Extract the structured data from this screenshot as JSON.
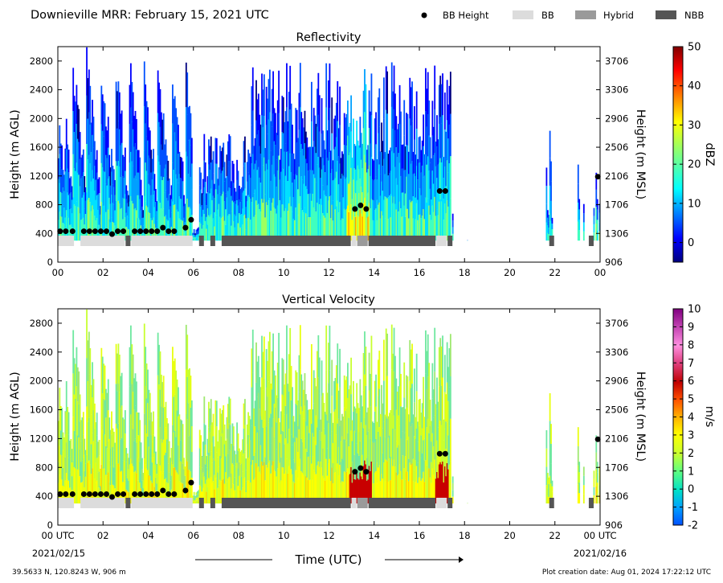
{
  "header": {
    "title": "Downieville MRR:  February 15, 2021 UTC",
    "legend": [
      {
        "label": "BB Height",
        "kind": "dot",
        "color": "#000000"
      },
      {
        "label": "BB",
        "kind": "box",
        "color": "#dcdcdc"
      },
      {
        "label": "Hybrid",
        "kind": "box",
        "color": "#9a9a9a"
      },
      {
        "label": "NBB",
        "kind": "box",
        "color": "#555555"
      }
    ]
  },
  "chart_data": [
    {
      "type": "heatmap",
      "title": "Reflectivity",
      "ylabel": "Height (m AGL)",
      "ylabel_right": "Height (m MSL)",
      "ylim": [
        0,
        3000
      ],
      "xlim": [
        0,
        24
      ],
      "x_ticks": [
        "00",
        "02",
        "04",
        "06",
        "08",
        "10",
        "12",
        "14",
        "16",
        "18",
        "20",
        "22",
        "00"
      ],
      "y_ticks": [
        0,
        400,
        800,
        1200,
        1600,
        2000,
        2400,
        2800
      ],
      "y_ticks_right": [
        "906",
        "1306",
        "1706",
        "2106",
        "2506",
        "2906",
        "3306",
        "3706"
      ],
      "colorbar": {
        "label": "dBZ",
        "min": -5,
        "max": 50,
        "ticks": [
          0,
          10,
          20,
          30,
          40,
          50
        ],
        "colormap": "jet"
      },
      "bb_height": [
        {
          "t": 0.1,
          "h": 430
        },
        {
          "t": 0.35,
          "h": 430
        },
        {
          "t": 0.65,
          "h": 430
        },
        {
          "t": 1.15,
          "h": 430
        },
        {
          "t": 1.4,
          "h": 430
        },
        {
          "t": 1.65,
          "h": 430
        },
        {
          "t": 1.9,
          "h": 430
        },
        {
          "t": 2.15,
          "h": 430
        },
        {
          "t": 2.4,
          "h": 390
        },
        {
          "t": 2.65,
          "h": 430
        },
        {
          "t": 2.9,
          "h": 430
        },
        {
          "t": 3.4,
          "h": 430
        },
        {
          "t": 3.65,
          "h": 430
        },
        {
          "t": 3.9,
          "h": 430
        },
        {
          "t": 4.15,
          "h": 430
        },
        {
          "t": 4.4,
          "h": 430
        },
        {
          "t": 4.65,
          "h": 480
        },
        {
          "t": 4.9,
          "h": 430
        },
        {
          "t": 5.15,
          "h": 430
        },
        {
          "t": 5.65,
          "h": 480
        },
        {
          "t": 5.9,
          "h": 590
        },
        {
          "t": 13.15,
          "h": 740
        },
        {
          "t": 13.4,
          "h": 790
        },
        {
          "t": 13.65,
          "h": 740
        },
        {
          "t": 16.9,
          "h": 990
        },
        {
          "t": 17.15,
          "h": 990
        },
        {
          "t": 23.9,
          "h": 1190
        }
      ],
      "bands": [
        {
          "start": 0.0,
          "end": 0.75,
          "type": "BB"
        },
        {
          "start": 1.0,
          "end": 3.0,
          "type": "BB"
        },
        {
          "start": 3.0,
          "end": 3.25,
          "type": "NBB"
        },
        {
          "start": 3.25,
          "end": 6.0,
          "type": "BB"
        },
        {
          "start": 6.25,
          "end": 6.5,
          "type": "NBB"
        },
        {
          "start": 6.75,
          "end": 7.0,
          "type": "NBB"
        },
        {
          "start": 7.25,
          "end": 13.0,
          "type": "NBB"
        },
        {
          "start": 13.0,
          "end": 13.25,
          "type": "BB"
        },
        {
          "start": 13.25,
          "end": 13.75,
          "type": "Hybrid"
        },
        {
          "start": 13.75,
          "end": 16.75,
          "type": "NBB"
        },
        {
          "start": 16.75,
          "end": 17.25,
          "type": "BB"
        },
        {
          "start": 17.25,
          "end": 17.5,
          "type": "NBB"
        },
        {
          "start": 21.75,
          "end": 22.0,
          "type": "NBB"
        },
        {
          "start": 23.5,
          "end": 23.75,
          "type": "NBB"
        }
      ]
    },
    {
      "type": "heatmap",
      "title": "Vertical Velocity",
      "xlabel": "Time (UTC)",
      "ylabel": "Height (m AGL)",
      "ylabel_right": "Height (m MSL)",
      "ylim": [
        0,
        3000
      ],
      "xlim": [
        0,
        24
      ],
      "x_ticks": [
        "00 UTC",
        "02",
        "04",
        "06",
        "08",
        "10",
        "12",
        "14",
        "16",
        "18",
        "20",
        "22",
        "00 UTC"
      ],
      "x_dates": [
        "2021/02/15",
        "2021/02/16"
      ],
      "y_ticks": [
        0,
        400,
        800,
        1200,
        1600,
        2000,
        2400,
        2800
      ],
      "y_ticks_right": [
        "906",
        "1306",
        "1706",
        "2106",
        "2506",
        "2906",
        "3306",
        "3706"
      ],
      "colorbar": {
        "label": "m/s",
        "min": -2,
        "max": 10,
        "ticks": [
          -2,
          -1,
          0,
          1,
          2,
          3,
          4,
          5,
          6,
          7,
          8,
          9,
          10
        ],
        "colormap": "velocity"
      }
    }
  ],
  "footer": {
    "location": "39.5633 N, 120.8243 W, 906 m",
    "creation": "Plot creation date: Aug 01, 2024 17:22:12 UTC"
  }
}
